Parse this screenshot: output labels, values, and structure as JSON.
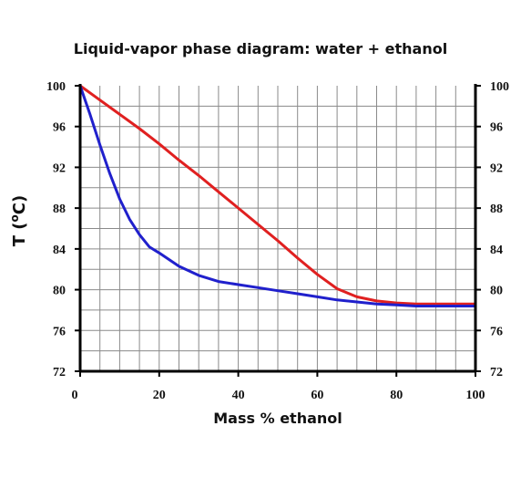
{
  "chart_data": {
    "type": "line",
    "title": "Liquid-vapor phase diagram: water + ethanol",
    "xlabel": "Mass % ethanol",
    "ylabel_main": "T (",
    "ylabel_deg": "o",
    "ylabel_unit": "C)",
    "xlim": [
      0,
      100
    ],
    "ylim": [
      72,
      100
    ],
    "xticks": [
      0,
      20,
      40,
      60,
      80,
      100
    ],
    "yticks": [
      72,
      76,
      80,
      84,
      88,
      92,
      96,
      100
    ],
    "grid": true,
    "grid_x_step": 5,
    "grid_y_step": 2,
    "series": [
      {
        "color": "#e02020",
        "x": [
          0,
          5,
          10,
          15,
          20,
          25,
          30,
          35,
          40,
          45,
          50,
          55,
          60,
          65,
          70,
          75,
          80,
          85,
          90,
          95,
          100
        ],
        "y": [
          100,
          98.6,
          97.2,
          95.8,
          94.3,
          92.7,
          91.2,
          89.6,
          88.0,
          86.4,
          84.8,
          83.1,
          81.5,
          80.1,
          79.3,
          78.9,
          78.7,
          78.6,
          78.6,
          78.6,
          78.6
        ]
      },
      {
        "color": "#2020cc",
        "x": [
          0,
          2.5,
          5,
          7.5,
          10,
          12.5,
          15,
          17.5,
          20,
          25,
          30,
          35,
          40,
          45,
          50,
          55,
          60,
          65,
          70,
          75,
          80,
          85,
          90,
          95,
          100
        ],
        "y": [
          100,
          97.2,
          94.2,
          91.4,
          88.9,
          86.9,
          85.4,
          84.2,
          83.6,
          82.3,
          81.4,
          80.8,
          80.5,
          80.2,
          79.9,
          79.6,
          79.3,
          79.0,
          78.8,
          78.6,
          78.5,
          78.4,
          78.4,
          78.4,
          78.4
        ]
      }
    ]
  }
}
